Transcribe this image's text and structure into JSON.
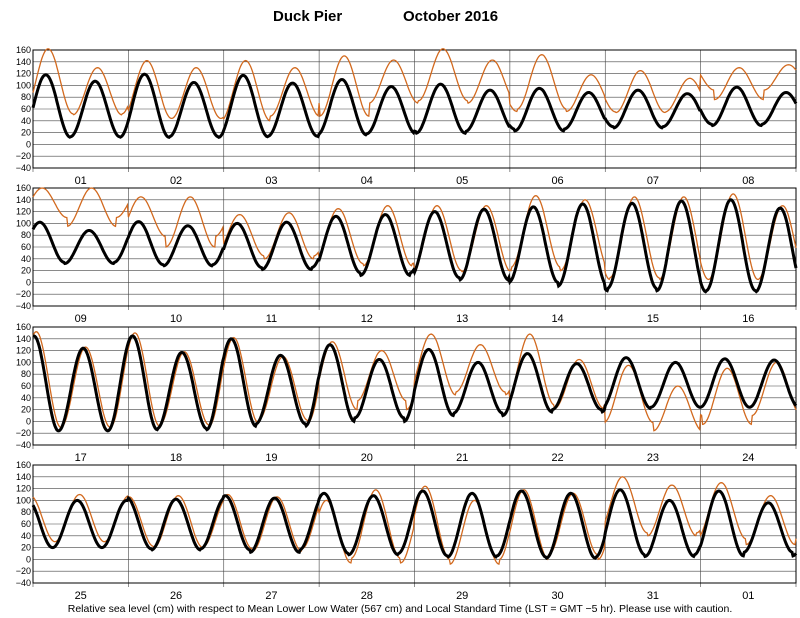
{
  "chart_data": {
    "type": "line",
    "title_station": "Duck Pier",
    "title_month": "October  2016",
    "caption": "Relative sea level (cm) with respect to Mean Lower Low Water (567 cm) and Local Standard Time (LST = GMT −5 hr). Please use with caution.",
    "ylim": [
      -40,
      160
    ],
    "yticks": [
      160,
      140,
      120,
      100,
      80,
      60,
      40,
      20,
      0,
      -20,
      -40
    ],
    "grid": true,
    "colors": {
      "predicted": "#000000",
      "observed": "#d2691e"
    },
    "panels": [
      {
        "days": [
          "01",
          "02",
          "03",
          "04",
          "05",
          "06",
          "07",
          "08"
        ],
        "predicted_daily": [
          {
            "high1": 118,
            "high2": 107,
            "low1": 12,
            "low2": 13
          },
          {
            "high1": 119,
            "high2": 105,
            "low1": 12,
            "low2": 13
          },
          {
            "high1": 117,
            "high2": 104,
            "low1": 13,
            "low2": 14
          },
          {
            "high1": 110,
            "high2": 98,
            "low1": 16,
            "low2": 18
          },
          {
            "high1": 102,
            "high2": 92,
            "low1": 19,
            "low2": 22
          },
          {
            "high1": 95,
            "high2": 88,
            "low1": 23,
            "low2": 26
          },
          {
            "high1": 92,
            "high2": 86,
            "low1": 28,
            "low2": 30
          },
          {
            "high1": 97,
            "high2": 88,
            "low1": 32,
            "low2": 34
          }
        ],
        "observed_daily": [
          {
            "high1": 162,
            "high2": 130,
            "low1": 52,
            "low2": 50
          },
          {
            "high1": 142,
            "high2": 130,
            "low1": 44,
            "low2": 44
          },
          {
            "high1": 142,
            "high2": 130,
            "low1": 40,
            "low2": 48
          },
          {
            "high1": 150,
            "high2": 143,
            "low1": 48,
            "low2": 70
          },
          {
            "high1": 162,
            "high2": 143,
            "low1": 74,
            "low2": 70
          },
          {
            "high1": 152,
            "high2": 118,
            "low1": 60,
            "low2": 56
          },
          {
            "high1": 125,
            "high2": 112,
            "low1": 54,
            "low2": 55
          },
          {
            "high1": 130,
            "high2": 135,
            "low1": 76,
            "low2": 92
          }
        ]
      },
      {
        "days": [
          "09",
          "10",
          "11",
          "12",
          "13",
          "14",
          "15",
          "16"
        ],
        "predicted_daily": [
          {
            "high1": 102,
            "high2": 88,
            "low1": 34,
            "low2": 32
          },
          {
            "high1": 103,
            "high2": 96,
            "low1": 30,
            "low2": 28
          },
          {
            "high1": 100,
            "high2": 102,
            "low1": 25,
            "low2": 22
          },
          {
            "high1": 112,
            "high2": 115,
            "low1": 16,
            "low2": 12
          },
          {
            "high1": 120,
            "high2": 124,
            "low1": 8,
            "low2": 4
          },
          {
            "high1": 128,
            "high2": 133,
            "low1": 0,
            "low2": -6
          },
          {
            "high1": 134,
            "high2": 138,
            "low1": -10,
            "low2": -14
          },
          {
            "high1": 140,
            "high2": 126,
            "low1": -14,
            "low2": -16
          }
        ],
        "observed_daily": [
          {
            "high1": 160,
            "high2": 160,
            "low1": 110,
            "low2": 95
          },
          {
            "high1": 145,
            "high2": 145,
            "low1": 78,
            "low2": 60
          },
          {
            "high1": 115,
            "high2": 118,
            "low1": 45,
            "low2": 40
          },
          {
            "high1": 125,
            "high2": 130,
            "low1": 32,
            "low2": 28
          },
          {
            "high1": 130,
            "high2": 130,
            "low1": 20,
            "low2": 18
          },
          {
            "high1": 147,
            "high2": 140,
            "low1": 26,
            "low2": 20
          },
          {
            "high1": 145,
            "high2": 145,
            "low1": 8,
            "low2": 5
          },
          {
            "high1": 150,
            "high2": 130,
            "low1": 5,
            "low2": 5
          }
        ]
      },
      {
        "days": [
          "17",
          "18",
          "19",
          "20",
          "21",
          "22",
          "23",
          "24"
        ],
        "predicted_daily": [
          {
            "high1": 145,
            "high2": 124,
            "low1": -16,
            "low2": -16
          },
          {
            "high1": 145,
            "high2": 117,
            "low1": -14,
            "low2": -12
          },
          {
            "high1": 140,
            "high2": 112,
            "low1": -8,
            "low2": -4
          },
          {
            "high1": 130,
            "high2": 105,
            "low1": 0,
            "low2": 6
          },
          {
            "high1": 122,
            "high2": 100,
            "low1": 10,
            "low2": 14
          },
          {
            "high1": 115,
            "high2": 98,
            "low1": 16,
            "low2": 20
          },
          {
            "high1": 108,
            "high2": 100,
            "low1": 22,
            "low2": 24
          },
          {
            "high1": 106,
            "high2": 104,
            "low1": 24,
            "low2": 24
          }
        ],
        "observed_daily": [
          {
            "high1": 152,
            "high2": 126,
            "low1": -10,
            "low2": -10
          },
          {
            "high1": 150,
            "high2": 118,
            "low1": -8,
            "low2": -6
          },
          {
            "high1": 142,
            "high2": 110,
            "low1": -2,
            "low2": 2
          },
          {
            "high1": 135,
            "high2": 120,
            "low1": 20,
            "low2": 35
          },
          {
            "high1": 148,
            "high2": 130,
            "low1": 45,
            "low2": 50
          },
          {
            "high1": 148,
            "high2": 105,
            "low1": 28,
            "low2": 22
          },
          {
            "high1": 95,
            "high2": 60,
            "low1": -2,
            "low2": -16
          },
          {
            "high1": 90,
            "high2": 100,
            "low1": -5,
            "low2": 10
          }
        ]
      },
      {
        "days": [
          "25",
          "26",
          "27",
          "28",
          "29",
          "30",
          "31",
          "01"
        ],
        "predicted_daily": [
          {
            "high1": 100,
            "high2": 100,
            "low1": 20,
            "low2": 20
          },
          {
            "high1": 105,
            "high2": 102,
            "low1": 18,
            "low2": 16
          },
          {
            "high1": 108,
            "high2": 104,
            "low1": 16,
            "low2": 12
          },
          {
            "high1": 112,
            "high2": 108,
            "low1": 10,
            "low2": 8
          },
          {
            "high1": 116,
            "high2": 112,
            "low1": 6,
            "low2": 4
          },
          {
            "high1": 116,
            "high2": 112,
            "low1": 4,
            "low2": 2
          },
          {
            "high1": 118,
            "high2": 100,
            "low1": 8,
            "low2": 5
          },
          {
            "high1": 116,
            "high2": 96,
            "low1": 6,
            "low2": 12
          }
        ],
        "observed_daily": [
          {
            "high1": 108,
            "high2": 110,
            "low1": 30,
            "low2": 30
          },
          {
            "high1": 106,
            "high2": 108,
            "low1": 22,
            "low2": 20
          },
          {
            "high1": 110,
            "high2": 106,
            "low1": 18,
            "low2": 14
          },
          {
            "high1": 100,
            "high2": 118,
            "low1": -6,
            "low2": 2
          },
          {
            "high1": 124,
            "high2": 100,
            "low1": 0,
            "low2": -8
          },
          {
            "high1": 118,
            "high2": 112,
            "low1": 0,
            "low2": 8
          },
          {
            "high1": 140,
            "high2": 126,
            "low1": 45,
            "low2": 40
          },
          {
            "high1": 130,
            "high2": 108,
            "low1": 35,
            "low2": 25
          }
        ]
      }
    ]
  }
}
